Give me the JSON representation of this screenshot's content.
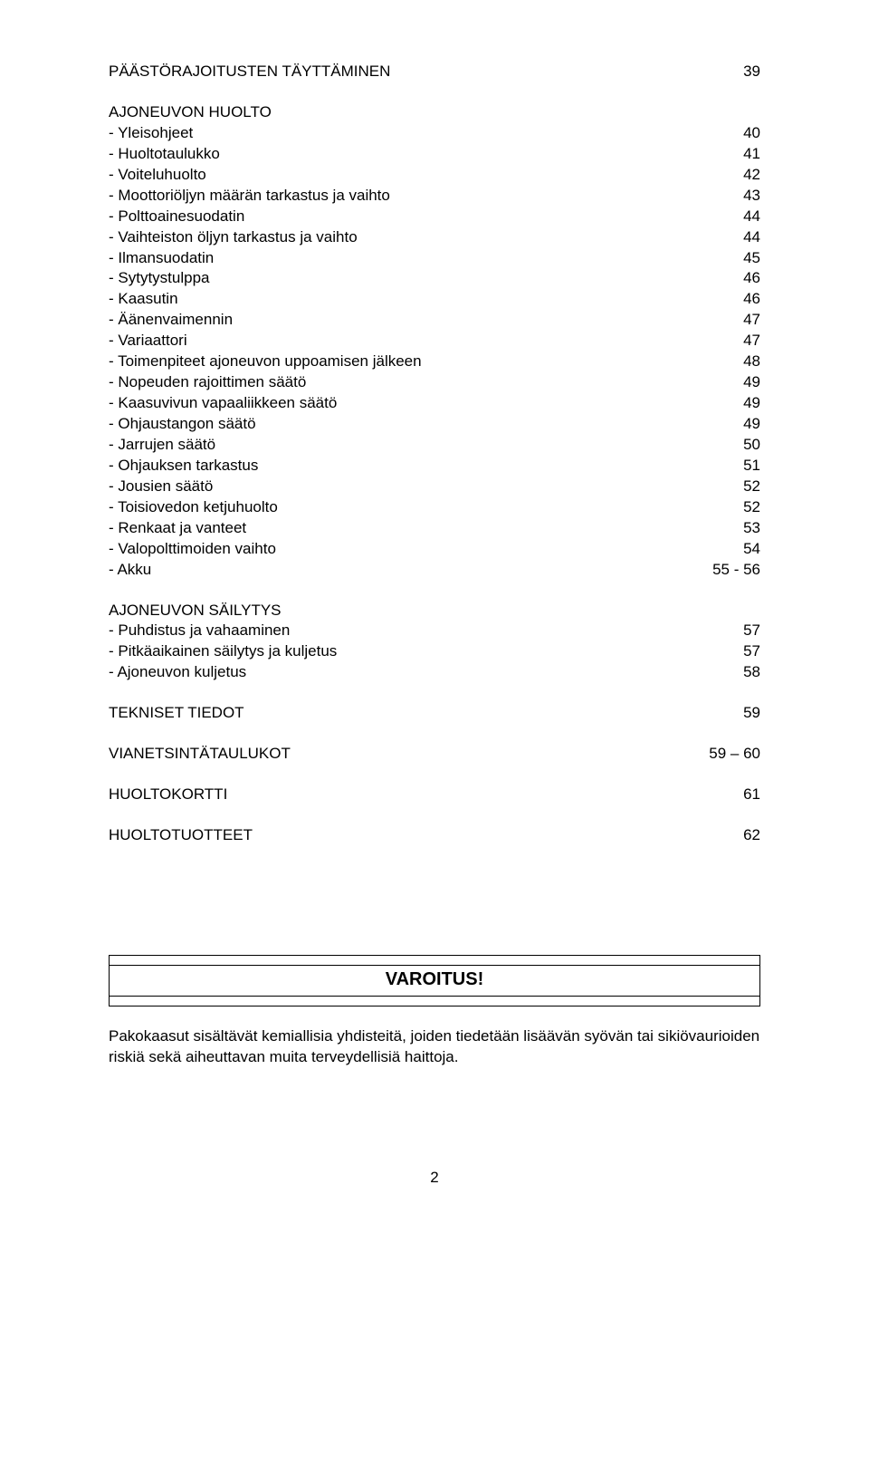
{
  "top_row": {
    "label": "PÄÄSTÖRAJOITUSTEN TÄYTTÄMINEN",
    "page": "39"
  },
  "sections": [
    {
      "heading": "AJONEUVON HUOLTO",
      "items": [
        {
          "label": "- Yleisohjeet",
          "page": "40"
        },
        {
          "label": "- Huoltotaulukko",
          "page": "41"
        },
        {
          "label": "- Voiteluhuolto",
          "page": "42"
        },
        {
          "label": "- Moottoriöljyn määrän tarkastus ja vaihto",
          "page": "43"
        },
        {
          "label": "- Polttoainesuodatin",
          "page": "44"
        },
        {
          "label": "- Vaihteiston öljyn tarkastus ja vaihto",
          "page": "44"
        },
        {
          "label": "- Ilmansuodatin",
          "page": "45"
        },
        {
          "label": "- Sytytystulppa",
          "page": "46"
        },
        {
          "label": "- Kaasutin",
          "page": "46"
        },
        {
          "label": "- Äänenvaimennin",
          "page": "47"
        },
        {
          "label": "- Variaattori",
          "page": "47"
        },
        {
          "label": "- Toimenpiteet ajoneuvon uppoamisen jälkeen",
          "page": "48"
        },
        {
          "label": "- Nopeuden rajoittimen säätö",
          "page": "49"
        },
        {
          "label": "- Kaasuvivun vapaaliikkeen säätö",
          "page": "49"
        },
        {
          "label": "- Ohjaustangon säätö",
          "page": "49"
        },
        {
          "label": "- Jarrujen säätö",
          "page": "50"
        },
        {
          "label": "- Ohjauksen tarkastus",
          "page": "51"
        },
        {
          "label": "- Jousien säätö",
          "page": "52"
        },
        {
          "label": "- Toisiovedon ketjuhuolto",
          "page": "52"
        },
        {
          "label": "- Renkaat ja vanteet",
          "page": "53"
        },
        {
          "label": "- Valopolttimoiden vaihto",
          "page": "54"
        },
        {
          "label": "- Akku",
          "page": "55 - 56"
        }
      ]
    },
    {
      "heading": "AJONEUVON SÄILYTYS",
      "items": [
        {
          "label": "- Puhdistus ja vahaaminen",
          "page": "57"
        },
        {
          "label": "- Pitkäaikainen säilytys ja kuljetus",
          "page": "57"
        },
        {
          "label": "- Ajoneuvon kuljetus",
          "page": "58"
        }
      ]
    }
  ],
  "tail": [
    {
      "label": "TEKNISET TIEDOT",
      "page": "59"
    },
    {
      "label": "VIANETSINTÄTAULUKOT",
      "page": "59 – 60"
    },
    {
      "label": "HUOLTOKORTTI",
      "page": "61"
    },
    {
      "label": "HUOLTOTUOTTEET",
      "page": "62"
    }
  ],
  "warning_title": "VAROITUS!",
  "warning_text": "Pakokaasut sisältävät kemiallisia yhdisteitä, joiden tiedetään lisäävän syövän tai sikiövaurioiden riskiä sekä aiheuttavan muita terveydellisiä haittoja.",
  "page_number": "2"
}
